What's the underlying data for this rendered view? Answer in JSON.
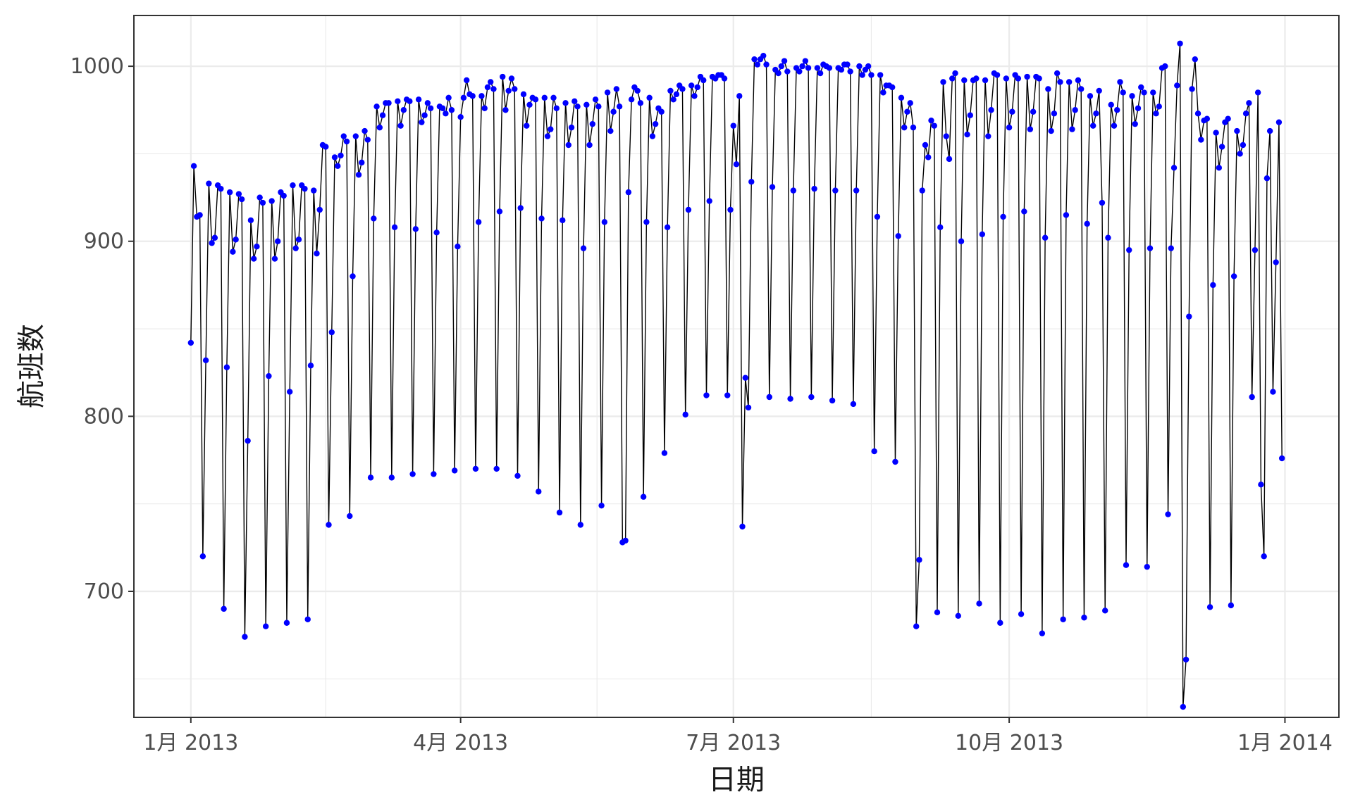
{
  "chart_data": {
    "type": "line",
    "title": "",
    "xlabel": "日期",
    "ylabel": "航班数",
    "x_start": "2013-01-01",
    "x_end": "2013-12-31",
    "xlim": [
      "2012-12-13",
      "2014-01-19"
    ],
    "ylim": [
      628,
      1029
    ],
    "x_ticks": [
      {
        "date": "2013-01-01",
        "label": "1月 2013"
      },
      {
        "date": "2013-04-01",
        "label": "4月 2013"
      },
      {
        "date": "2013-07-01",
        "label": "7月 2013"
      },
      {
        "date": "2013-10-01",
        "label": "10月 2013"
      },
      {
        "date": "2014-01-01",
        "label": "1月 2014"
      }
    ],
    "y_ticks": [
      {
        "value": 700,
        "label": "700"
      },
      {
        "value": 800,
        "label": "800"
      },
      {
        "value": 900,
        "label": "900"
      },
      {
        "value": 1000,
        "label": "1000"
      }
    ],
    "grid": true,
    "legend": "none",
    "line_color": "#000000",
    "point_color": "#0000ff",
    "series": [
      {
        "values": [
          842,
          943,
          914,
          915,
          720,
          832,
          933,
          899,
          902,
          932,
          930,
          690,
          828,
          928,
          894,
          901,
          927,
          924,
          674,
          786,
          912,
          890,
          897,
          925,
          922,
          680,
          823,
          923,
          890,
          900,
          928,
          926,
          682,
          814,
          932,
          896,
          901,
          932,
          930,
          684,
          829,
          929,
          893,
          918,
          955,
          954,
          738,
          848,
          948,
          943,
          949,
          960,
          957,
          743,
          880,
          960,
          938,
          945,
          963,
          958,
          765,
          913,
          977,
          965,
          972,
          979,
          979,
          765,
          908,
          980,
          966,
          975,
          981,
          980,
          767,
          907,
          981,
          968,
          972,
          979,
          976,
          767,
          905,
          977,
          976,
          973,
          982,
          975,
          769,
          897,
          971,
          982,
          992,
          984,
          983,
          770,
          911,
          983,
          976,
          988,
          991,
          987,
          770,
          917,
          994,
          975,
          986,
          993,
          987,
          766,
          919,
          984,
          966,
          978,
          982,
          981,
          757,
          913,
          982,
          960,
          964,
          982,
          976,
          745,
          912,
          979,
          955,
          965,
          980,
          977,
          738,
          896,
          978,
          955,
          967,
          981,
          977,
          749,
          911,
          985,
          963,
          974,
          987,
          977,
          728,
          729,
          928,
          981,
          988,
          986,
          979,
          754,
          911,
          982,
          960,
          967,
          976,
          974,
          779,
          908,
          986,
          981,
          984,
          989,
          987,
          801,
          918,
          989,
          983,
          988,
          994,
          992,
          812,
          923,
          994,
          993,
          995,
          995,
          993,
          812,
          918,
          966,
          944,
          983,
          737,
          822,
          805,
          934,
          1004,
          1001,
          1004,
          1006,
          1001,
          811,
          931,
          998,
          996,
          1000,
          1003,
          997,
          810,
          929,
          999,
          997,
          1000,
          1003,
          999,
          811,
          930,
          999,
          996,
          1001,
          1000,
          999,
          809,
          929,
          999,
          998,
          1001,
          1001,
          997,
          807,
          929,
          1000,
          995,
          998,
          1000,
          995,
          780,
          914,
          995,
          985,
          989,
          989,
          988,
          774,
          903,
          982,
          965,
          974,
          979,
          965,
          680,
          718,
          929,
          955,
          948,
          969,
          966,
          688,
          908,
          991,
          960,
          947,
          993,
          996,
          686,
          900,
          992,
          961,
          972,
          992,
          993,
          693,
          904,
          992,
          960,
          975,
          996,
          995,
          682,
          914,
          993,
          965,
          974,
          995,
          993,
          687,
          917,
          994,
          964,
          974,
          994,
          993,
          676,
          902,
          987,
          963,
          973,
          996,
          991,
          684,
          915,
          991,
          964,
          975,
          992,
          987,
          685,
          910,
          983,
          966,
          973,
          986,
          922,
          689,
          902,
          978,
          966,
          975,
          991,
          985,
          715,
          895,
          983,
          967,
          976,
          988,
          985,
          714,
          896,
          985,
          973,
          977,
          999,
          1000,
          744,
          896,
          942,
          989,
          1013,
          634,
          661,
          857,
          987,
          1004,
          973,
          958,
          969,
          970,
          691,
          875,
          962,
          942,
          954,
          968,
          970,
          692,
          880,
          963,
          950,
          955,
          973,
          979,
          811,
          895,
          985,
          761,
          720,
          936,
          963,
          814,
          888,
          968,
          776
        ]
      }
    ]
  }
}
